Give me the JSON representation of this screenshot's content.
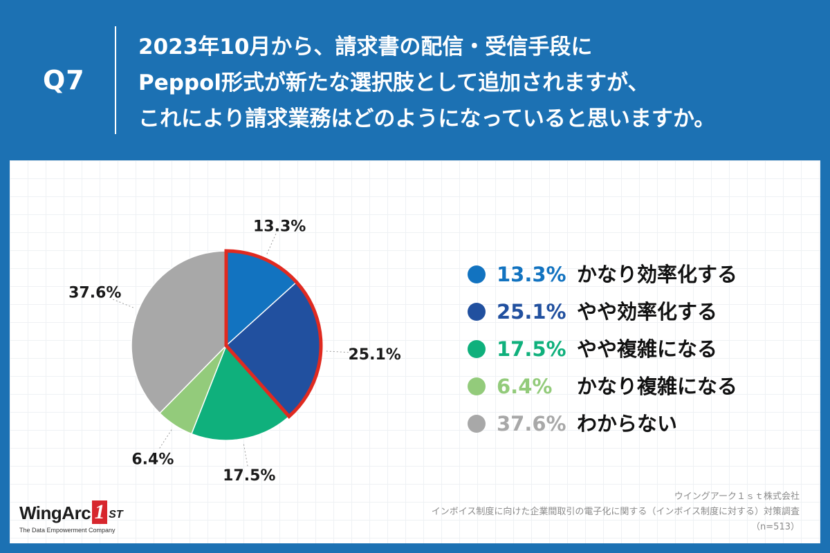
{
  "header": {
    "question_number": "Q7",
    "question_lines": [
      "2023年10月から、請求書の配信・受信手段に",
      "Peppol形式が新たな選択肢として追加されますが、",
      "これにより請求業務はどのようになっていると思いますか。"
    ]
  },
  "chart_data": {
    "type": "pie",
    "unit": "%",
    "slices": [
      {
        "label": "かなり効率化する",
        "value": 13.3,
        "display": "13.3%",
        "color": "#1273c0",
        "highlighted": true
      },
      {
        "label": "やや効率化する",
        "value": 25.1,
        "display": "25.1%",
        "color": "#21509f",
        "highlighted": true
      },
      {
        "label": "やや複雑になる",
        "value": 17.5,
        "display": "17.5%",
        "color": "#0fb07c",
        "highlighted": false
      },
      {
        "label": "かなり複雑になる",
        "value": 6.4,
        "display": "6.4%",
        "color": "#93cb7b",
        "highlighted": false
      },
      {
        "label": "わからない",
        "value": 37.6,
        "display": "37.6%",
        "color": "#a8a8a8",
        "highlighted": false
      }
    ],
    "highlight_color": "#e02a20",
    "legend_position": "right"
  },
  "legend": [
    {
      "pct": "13.3%",
      "label": "かなり効率化する",
      "color": "#1273c0"
    },
    {
      "pct": "25.1%",
      "label": "やや効率化する",
      "color": "#21509f"
    },
    {
      "pct": "17.5%",
      "label": "やや複雑になる",
      "color": "#0fb07c"
    },
    {
      "pct": "6.4%",
      "label": "かなり複雑になる",
      "color": "#93cb7b"
    },
    {
      "pct": "37.6%",
      "label": "わからない",
      "color": "#a8a8a8"
    }
  ],
  "source": {
    "company": "ウイングアーク１ｓｔ株式会社",
    "survey": "インボイス制度に向けた企業間取引の電子化に関する（インボイス制度に対する）対策調査",
    "sample": "（n=513）"
  },
  "logo": {
    "wordmark": "WingArc",
    "badge": "1",
    "suffix": "ST",
    "tagline": "The Data Empowerment Company"
  }
}
